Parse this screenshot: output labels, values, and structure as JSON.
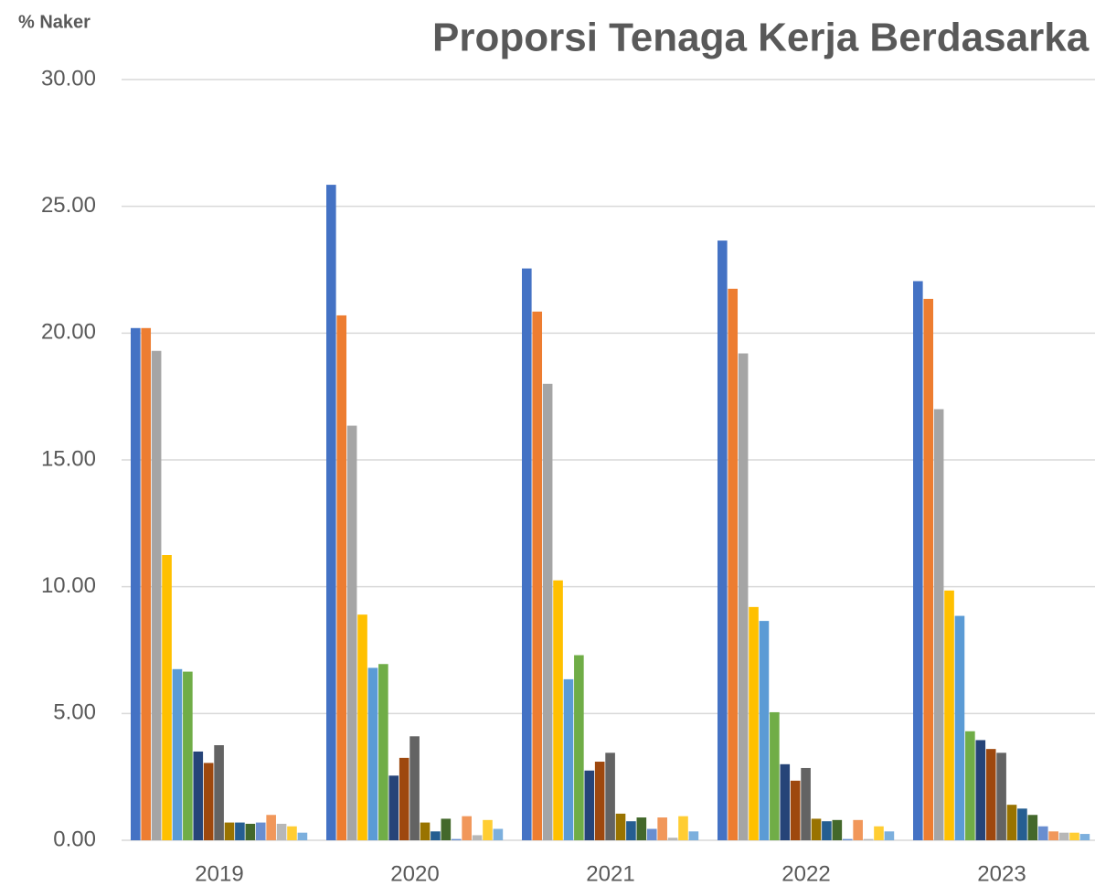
{
  "chart_data": {
    "type": "bar",
    "title": "Proporsi Tenaga Kerja Berdasarka",
    "y_label": "% Naker",
    "categories": [
      "2019",
      "2020",
      "2021",
      "2022",
      "2023"
    ],
    "series": [
      {
        "color": "#4472c4",
        "values": [
          20.2,
          25.85,
          22.55,
          23.65,
          22.05
        ]
      },
      {
        "color": "#ed7d31",
        "values": [
          20.2,
          20.7,
          20.85,
          21.75,
          21.35
        ]
      },
      {
        "color": "#a5a5a5",
        "values": [
          19.3,
          16.35,
          18.0,
          19.2,
          17.0
        ]
      },
      {
        "color": "#ffc000",
        "values": [
          11.25,
          8.9,
          10.25,
          9.2,
          9.85
        ]
      },
      {
        "color": "#5b9bd5",
        "values": [
          6.75,
          6.8,
          6.35,
          8.65,
          8.85
        ]
      },
      {
        "color": "#70ad47",
        "values": [
          6.65,
          6.95,
          7.3,
          5.05,
          4.3
        ]
      },
      {
        "color": "#264478",
        "values": [
          3.5,
          2.55,
          2.75,
          3.0,
          3.95
        ]
      },
      {
        "color": "#9e480e",
        "values": [
          3.05,
          3.25,
          3.1,
          2.35,
          3.6
        ]
      },
      {
        "color": "#636363",
        "values": [
          3.75,
          4.1,
          3.45,
          2.85,
          3.45
        ]
      },
      {
        "color": "#997300",
        "values": [
          0.7,
          0.7,
          1.05,
          0.85,
          1.4
        ]
      },
      {
        "color": "#255e91",
        "values": [
          0.7,
          0.35,
          0.75,
          0.75,
          1.25
        ]
      },
      {
        "color": "#43682b",
        "values": [
          0.65,
          0.85,
          0.9,
          0.8,
          1.0
        ]
      },
      {
        "color": "#698ed0",
        "values": [
          0.7,
          0.05,
          0.45,
          0.05,
          0.55
        ]
      },
      {
        "color": "#f1975a",
        "values": [
          1.0,
          0.95,
          0.9,
          0.8,
          0.35
        ]
      },
      {
        "color": "#b7b7b7",
        "values": [
          0.65,
          0.2,
          0.1,
          0.05,
          0.3
        ]
      },
      {
        "color": "#ffcd33",
        "values": [
          0.55,
          0.8,
          0.95,
          0.55,
          0.3
        ]
      },
      {
        "color": "#7cafdd",
        "values": [
          0.3,
          0.45,
          0.35,
          0.35,
          0.25
        ]
      }
    ],
    "ylim": [
      0,
      30
    ],
    "yticks": [
      {
        "value": 0,
        "label": "0.00"
      },
      {
        "value": 5,
        "label": "5.00"
      },
      {
        "value": 10,
        "label": "10.00"
      },
      {
        "value": 15,
        "label": "15.00"
      },
      {
        "value": 20,
        "label": "20.00"
      },
      {
        "value": 25,
        "label": "25.00"
      },
      {
        "value": 30,
        "label": "30.00"
      }
    ],
    "grid": true
  }
}
